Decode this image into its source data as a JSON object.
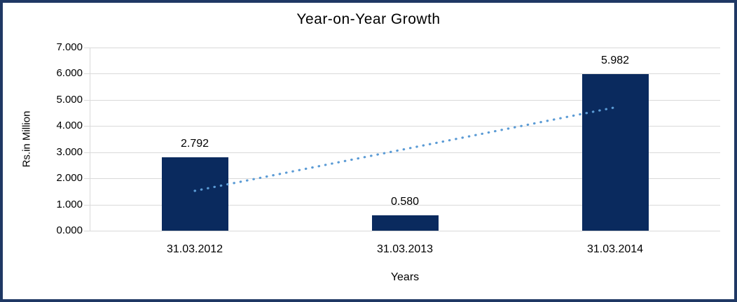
{
  "frame": {
    "border_color": "#1f3864",
    "background": "#ffffff"
  },
  "chart_data": {
    "type": "bar",
    "title": "Year-on-Year Growth",
    "xlabel": "Years",
    "ylabel": "Rs.in Million",
    "categories": [
      "31.03.2012",
      "31.03.2013",
      "31.03.2014"
    ],
    "values": [
      2.792,
      0.58,
      5.982
    ],
    "value_labels": [
      "2.792",
      "0.580",
      "5.982"
    ],
    "ylim": [
      0,
      7
    ],
    "ytick_step": 1,
    "ytick_labels": [
      "0.000",
      "1.000",
      "2.000",
      "3.000",
      "4.000",
      "5.000",
      "6.000",
      "7.000"
    ],
    "grid": true,
    "legend": "none",
    "bar_color": "#0a2a5e",
    "gridline_color": "#d9d9d9",
    "text_color": "#000000",
    "trendline": {
      "style": "dotted",
      "color": "#5b9bd5",
      "start_category_index": 0,
      "start_value": 1.523,
      "end_category_index": 2,
      "end_value": 4.713
    }
  }
}
